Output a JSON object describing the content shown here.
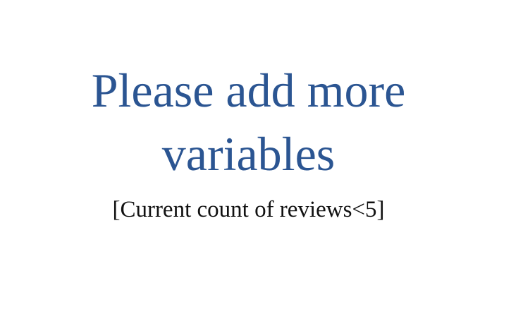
{
  "message": {
    "headline_line1": "Please add more",
    "headline_line2": "variables",
    "detail": "[Current count of reviews<5]"
  },
  "colors": {
    "headline": "#2b5592",
    "detail": "#111111",
    "background": "#ffffff"
  }
}
